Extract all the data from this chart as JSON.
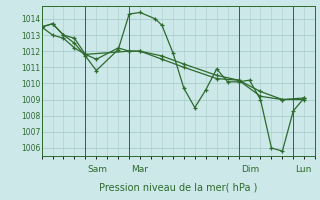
{
  "background_color": "#cce8e8",
  "grid_color": "#aacccc",
  "line_color": "#2d6a2d",
  "ylabel_text": "Pression niveau de la mer( hPa )",
  "xtick_labels": [
    "Sam",
    "Mar",
    "Dim",
    "Lun"
  ],
  "ylim": [
    1005.5,
    1014.8
  ],
  "yticks": [
    1006,
    1007,
    1008,
    1009,
    1010,
    1011,
    1012,
    1013,
    1014
  ],
  "xlim_days": [
    0,
    7
  ],
  "series1_x": [
    0.0,
    0.25,
    0.5,
    0.75,
    1.0,
    1.25,
    1.75,
    2.0,
    2.25,
    2.6,
    2.75,
    3.0,
    3.25,
    3.5,
    3.75,
    4.0,
    4.25,
    4.5,
    4.75,
    5.0,
    5.25,
    5.5,
    5.75,
    6.0
  ],
  "series1_y": [
    1013.5,
    1013.7,
    1013.0,
    1012.5,
    1011.7,
    1010.8,
    1012.1,
    1014.3,
    1014.4,
    1014.0,
    1013.6,
    1011.9,
    1009.7,
    1008.5,
    1009.6,
    1010.9,
    1010.1,
    1010.1,
    1010.2,
    1009.0,
    1006.0,
    1005.8,
    1008.3,
    1009.1
  ],
  "series2_x": [
    0.0,
    0.25,
    0.5,
    0.75,
    1.0,
    2.0,
    2.25,
    2.75,
    3.25,
    4.0,
    4.5,
    5.0,
    5.5,
    6.0
  ],
  "series2_y": [
    1013.5,
    1013.7,
    1013.0,
    1012.8,
    1011.8,
    1012.0,
    1012.0,
    1011.5,
    1011.0,
    1010.3,
    1010.2,
    1009.2,
    1009.0,
    1009.0
  ],
  "series3_x": [
    0.0,
    0.25,
    0.5,
    0.75,
    1.0,
    1.25,
    1.75,
    2.0,
    2.25,
    2.75,
    3.25,
    4.0,
    4.5,
    5.0,
    5.5,
    6.0
  ],
  "series3_y": [
    1013.5,
    1013.0,
    1012.8,
    1012.2,
    1011.8,
    1011.5,
    1012.2,
    1012.0,
    1012.0,
    1011.7,
    1011.2,
    1010.5,
    1010.2,
    1009.5,
    1009.0,
    1009.1
  ]
}
